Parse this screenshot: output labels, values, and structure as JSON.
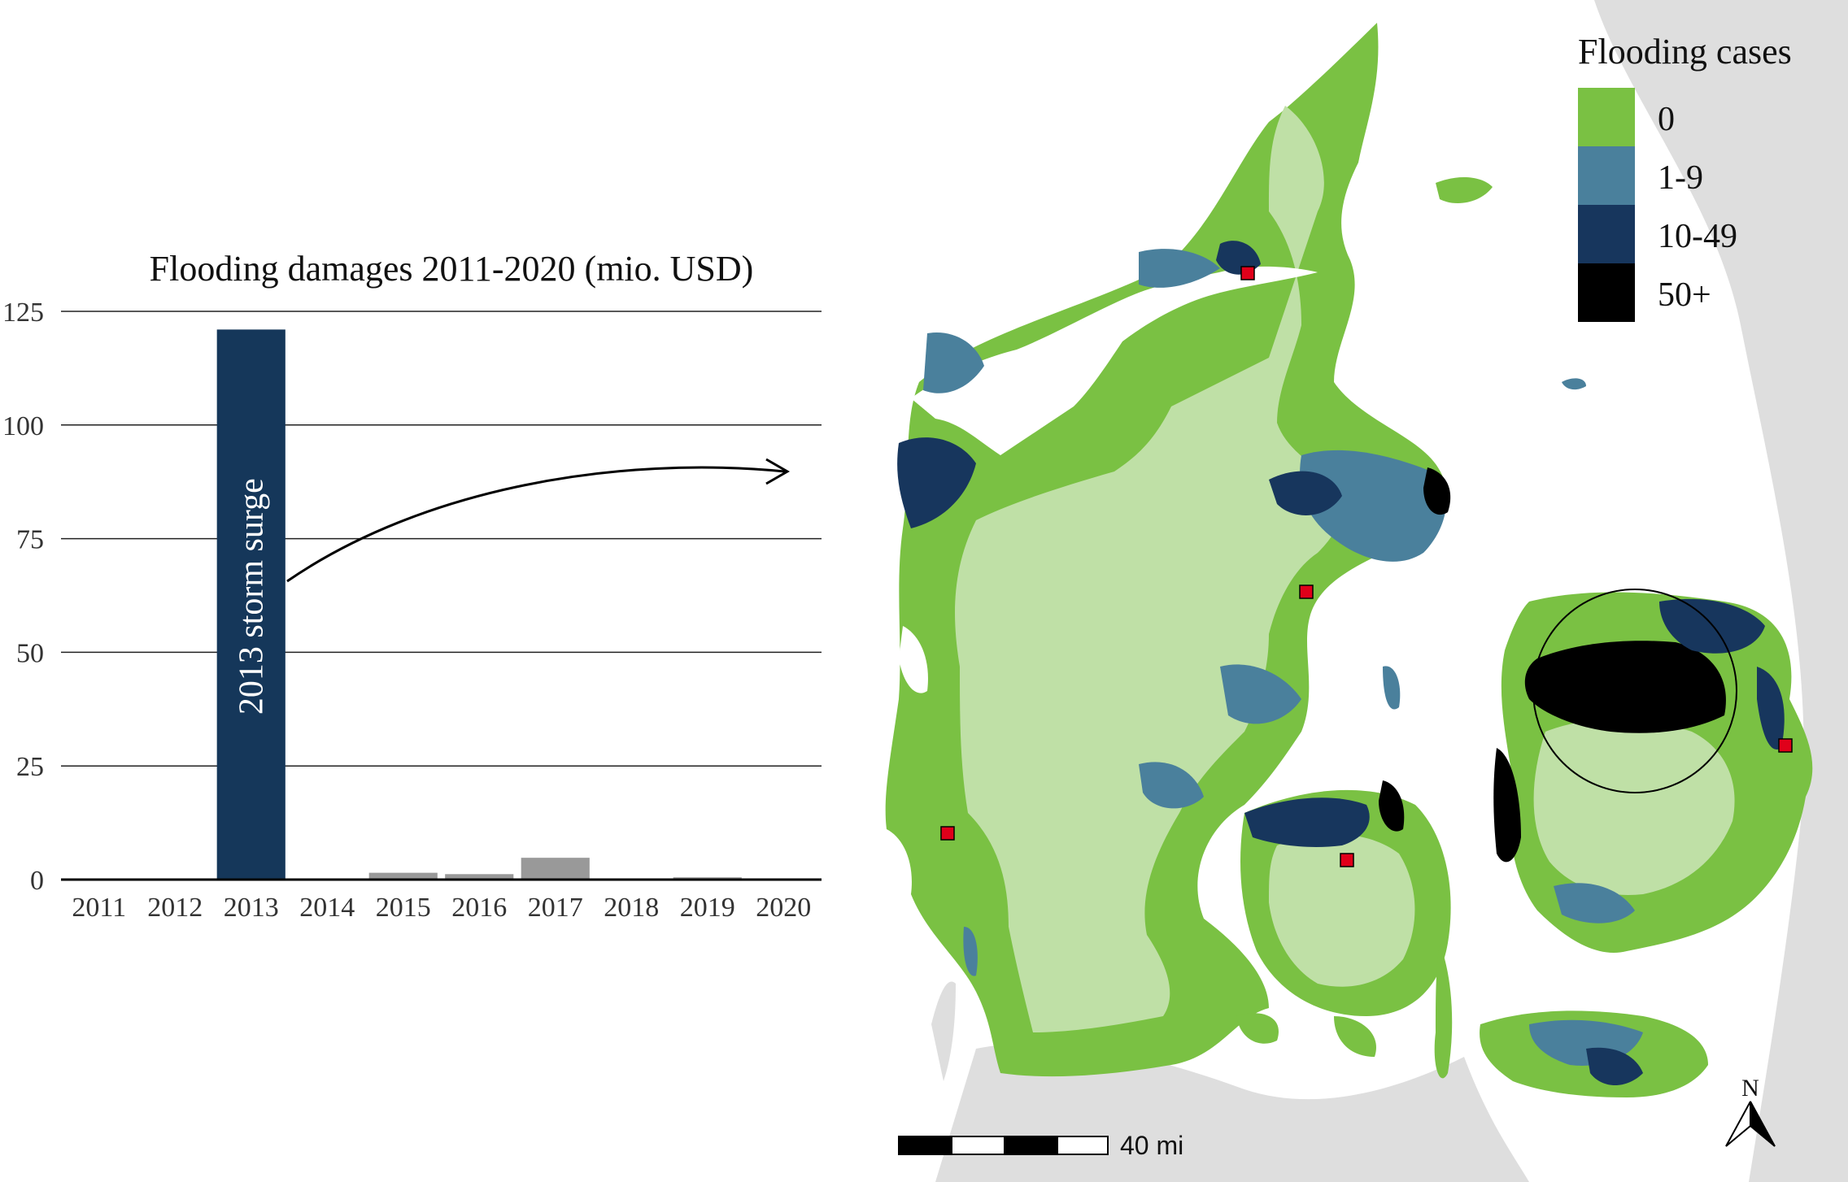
{
  "chart_data": {
    "type": "bar",
    "title": "Flooding damages 2011-2020 (mio. USD)",
    "xlabel": "",
    "ylabel": "",
    "ylim": [
      0,
      125
    ],
    "yticks": [
      0,
      25,
      50,
      75,
      100,
      125
    ],
    "grid": "horizontal",
    "categories": [
      "2011",
      "2012",
      "2013",
      "2014",
      "2015",
      "2016",
      "2017",
      "2018",
      "2019",
      "2020"
    ],
    "values": [
      0,
      0,
      121,
      0,
      1.5,
      1.2,
      4.8,
      0,
      0.5,
      0
    ],
    "bar_colors": [
      "#999999",
      "#999999",
      "#15375a",
      "#999999",
      "#999999",
      "#999999",
      "#999999",
      "#999999",
      "#999999",
      "#999999"
    ],
    "annotations": [
      {
        "category": "2013",
        "text": "2013 storm surge"
      }
    ]
  },
  "map": {
    "legend": {
      "title": "Flooding cases",
      "items": [
        {
          "label": "0",
          "color": "#7ac143"
        },
        {
          "label": "1-9",
          "color": "#4a809c"
        },
        {
          "label": "10-49",
          "color": "#17365d"
        },
        {
          "label": "50+",
          "color": "#000000"
        }
      ]
    },
    "base_color": "#bfe0a6",
    "neighbour_land_color": "#dedede",
    "marker_color": "#e0001a",
    "north_label": "N",
    "scalebar_label": "40 mi"
  }
}
